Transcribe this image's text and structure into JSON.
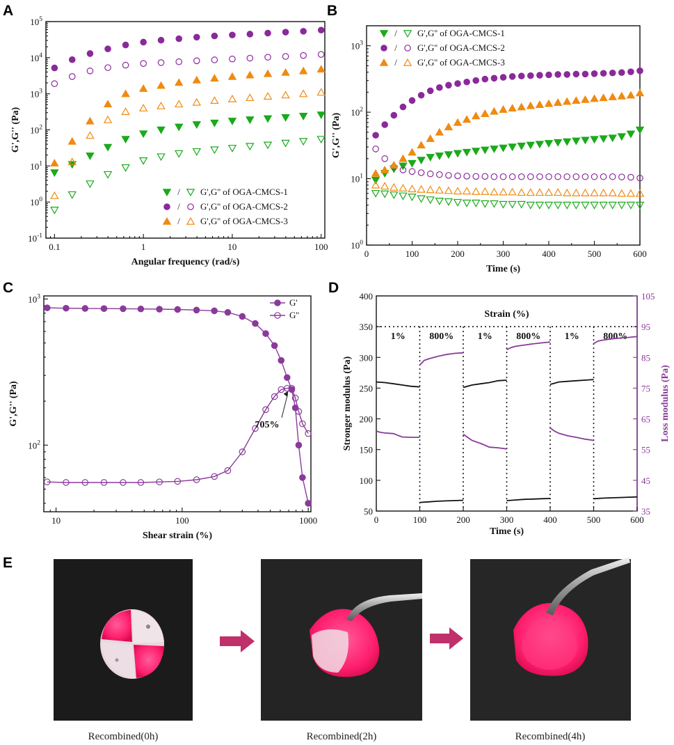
{
  "colors": {
    "green": "#1aaa1a",
    "purple": "#8a2a9a",
    "orange": "#f08a10",
    "curve_purple": "#8a3a9a",
    "arrow_pink": "#c0306a"
  },
  "panels": {
    "A": "A",
    "B": "B",
    "C": "C",
    "D": "D",
    "E": "E"
  },
  "chart_data": [
    {
      "id": "A",
      "type": "scatter",
      "xlabel": "Angular frequency  (rad/s)",
      "ylabel": "G',G'' (Pa)",
      "xscale": "log",
      "yscale": "log",
      "xlim": [
        0.08,
        110
      ],
      "ylim": [
        0.1,
        100000
      ],
      "xticks": [
        {
          "v": 0.1,
          "t": "0.1"
        },
        {
          "v": 1,
          "t": "1"
        },
        {
          "v": 10,
          "t": "10"
        },
        {
          "v": 100,
          "t": "100"
        }
      ],
      "yticks": [
        {
          "v": 0.1,
          "b": "10",
          "e": "-1"
        },
        {
          "v": 1,
          "b": "10",
          "e": "0"
        },
        {
          "v": 10,
          "b": "10",
          "e": "1"
        },
        {
          "v": 100,
          "b": "10",
          "e": "2"
        },
        {
          "v": 1000,
          "b": "10",
          "e": "3"
        },
        {
          "v": 10000,
          "b": "10",
          "e": "4"
        },
        {
          "v": 100000,
          "b": "10",
          "e": "5"
        }
      ],
      "legend_position": "bottom-right",
      "legend": [
        "G',G'' of OGA-CMCS-1",
        "G',G'' of OGA-CMCS-2",
        "G',G'' of OGA-CMCS-3"
      ],
      "x": [
        0.1,
        0.158,
        0.251,
        0.398,
        0.631,
        1.0,
        1.58,
        2.51,
        3.98,
        6.31,
        10,
        15.8,
        25.1,
        39.8,
        63.1,
        100
      ],
      "series": [
        {
          "name": "G' OGA-CMCS-1",
          "marker": "tri_down",
          "filled": true,
          "color": "green",
          "values": [
            6.5,
            11,
            19,
            33,
            55,
            78,
            100,
            120,
            140,
            155,
            175,
            190,
            205,
            220,
            240,
            260
          ]
        },
        {
          "name": "G'' OGA-CMCS-1",
          "marker": "tri_down",
          "filled": false,
          "color": "green",
          "values": [
            0.6,
            1.6,
            3.2,
            5.8,
            9,
            14,
            18,
            22,
            25,
            28,
            31,
            35,
            38,
            43,
            48,
            55
          ]
        },
        {
          "name": "G' OGA-CMCS-2",
          "marker": "circle",
          "filled": true,
          "color": "purple",
          "values": [
            5200,
            8800,
            13000,
            17500,
            22500,
            27000,
            30500,
            33500,
            37000,
            40000,
            42500,
            45000,
            48000,
            51000,
            54000,
            58000
          ]
        },
        {
          "name": "G'' OGA-CMCS-2",
          "marker": "circle",
          "filled": false,
          "color": "purple",
          "values": [
            1900,
            3000,
            4300,
            5300,
            6200,
            6900,
            7300,
            7700,
            8200,
            8700,
            9200,
            9700,
            10300,
            10800,
            11500,
            12300
          ]
        },
        {
          "name": "G' OGA-CMCS-3",
          "marker": "tri_up",
          "filled": true,
          "color": "orange",
          "values": [
            12,
            48,
            175,
            520,
            1000,
            1400,
            1700,
            2050,
            2400,
            2700,
            3000,
            3300,
            3600,
            3900,
            4300,
            4800
          ]
        },
        {
          "name": "G'' OGA-CMCS-3",
          "marker": "tri_up",
          "filled": false,
          "color": "orange",
          "values": [
            1.5,
            13,
            70,
            190,
            320,
            400,
            460,
            520,
            580,
            650,
            720,
            780,
            850,
            920,
            1000,
            1100
          ]
        }
      ]
    },
    {
      "id": "B",
      "type": "scatter",
      "xlabel": "Time (s)",
      "ylabel": "G',G'' (Pa)",
      "xscale": "linear",
      "yscale": "log",
      "xlim": [
        0,
        600
      ],
      "ylim": [
        1,
        2000
      ],
      "xticks": [
        {
          "v": 0,
          "t": "0"
        },
        {
          "v": 100,
          "t": "100"
        },
        {
          "v": 200,
          "t": "200"
        },
        {
          "v": 300,
          "t": "300"
        },
        {
          "v": 400,
          "t": "400"
        },
        {
          "v": 500,
          "t": "500"
        },
        {
          "v": 600,
          "t": "600"
        }
      ],
      "yticks": [
        {
          "v": 1,
          "b": "10",
          "e": "0"
        },
        {
          "v": 10,
          "b": "10",
          "e": "1"
        },
        {
          "v": 100,
          "b": "10",
          "e": "2"
        },
        {
          "v": 1000,
          "b": "10",
          "e": "3"
        }
      ],
      "legend_position": "top-left",
      "legend": [
        "G',G'' of OGA-CMCS-1",
        "G',G'' of OGA-CMCS-2",
        "G',G'' of OGA-CMCS-3"
      ],
      "x": [
        20,
        40,
        60,
        80,
        100,
        120,
        140,
        160,
        180,
        200,
        220,
        240,
        260,
        280,
        300,
        320,
        340,
        360,
        380,
        400,
        420,
        440,
        460,
        480,
        500,
        520,
        540,
        560,
        580,
        600
      ],
      "series": [
        {
          "name": "G' OGA-CMCS-1",
          "marker": "tri_down",
          "filled": true,
          "color": "green",
          "values": [
            9.5,
            12,
            14,
            15.5,
            17,
            19,
            21,
            22,
            23,
            24,
            25,
            26,
            27,
            28,
            29,
            30,
            31,
            32,
            33,
            34,
            35,
            36,
            37,
            38,
            39,
            40,
            41,
            43,
            47,
            54
          ]
        },
        {
          "name": "G'' OGA-CMCS-1",
          "marker": "tri_down",
          "filled": false,
          "color": "green",
          "values": [
            6,
            5.9,
            5.7,
            5.5,
            5.3,
            5.0,
            4.8,
            4.6,
            4.5,
            4.4,
            4.3,
            4.3,
            4.2,
            4.2,
            4.1,
            4.1,
            4.1,
            4.0,
            4.0,
            4.0,
            4.0,
            4.0,
            4.0,
            4.0,
            4.0,
            4.0,
            4.0,
            4.0,
            4.0,
            4.0
          ]
        },
        {
          "name": "G' OGA-CMCS-2",
          "marker": "circle",
          "filled": true,
          "color": "purple",
          "values": [
            45,
            65,
            90,
            120,
            150,
            180,
            210,
            235,
            255,
            270,
            285,
            300,
            315,
            325,
            335,
            345,
            350,
            355,
            360,
            365,
            370,
            370,
            375,
            375,
            380,
            385,
            390,
            395,
            405,
            420
          ]
        },
        {
          "name": "G'' OGA-CMCS-2",
          "marker": "circle",
          "filled": false,
          "color": "purple",
          "values": [
            28,
            20,
            15,
            13.5,
            12.8,
            12.3,
            11.8,
            11.5,
            11.2,
            11.0,
            10.9,
            10.8,
            10.8,
            10.7,
            10.7,
            10.7,
            10.7,
            10.7,
            10.7,
            10.7,
            10.7,
            10.7,
            10.7,
            10.7,
            10.7,
            10.7,
            10.7,
            10.6,
            10.5,
            10.2
          ]
        },
        {
          "name": "G' OGA-CMCS-3",
          "marker": "tri_up",
          "filled": true,
          "color": "orange",
          "values": [
            12,
            13.5,
            16,
            20,
            25,
            32,
            40,
            50,
            60,
            70,
            78,
            88,
            95,
            103,
            110,
            115,
            120,
            125,
            130,
            135,
            140,
            145,
            150,
            155,
            160,
            165,
            170,
            175,
            180,
            195
          ]
        },
        {
          "name": "G'' OGA-CMCS-3",
          "marker": "tri_up",
          "filled": false,
          "color": "orange",
          "values": [
            8,
            7.7,
            7.4,
            7.2,
            7.0,
            6.9,
            6.8,
            6.7,
            6.6,
            6.5,
            6.5,
            6.4,
            6.4,
            6.3,
            6.3,
            6.3,
            6.2,
            6.2,
            6.2,
            6.2,
            6.2,
            6.1,
            6.1,
            6.1,
            6.1,
            6.1,
            6.1,
            6.0,
            6.0,
            6.0
          ]
        }
      ]
    },
    {
      "id": "C",
      "type": "line",
      "xlabel": "Shear strain  (%)",
      "ylabel": "G',G'' (Pa)",
      "xscale": "log",
      "yscale": "log",
      "xlim": [
        8,
        1050
      ],
      "ylim": [
        35,
        1050
      ],
      "xticks": [
        {
          "v": 10,
          "t": "10"
        },
        {
          "v": 100,
          "t": "100"
        },
        {
          "v": 1000,
          "t": "1000"
        }
      ],
      "yticks": [
        {
          "v": 100,
          "b": "10",
          "e": "2"
        },
        {
          "v": 1000,
          "b": "10",
          "e": "3"
        }
      ],
      "legend_position": "top-right",
      "legend": [
        "G'",
        "G''"
      ],
      "annotation": "705%",
      "annotation_x": 705,
      "series": [
        {
          "name": "G'",
          "marker": "circle",
          "filled": true,
          "color": "curve_purple",
          "x": [
            8.5,
            12,
            17,
            24,
            34,
            47,
            66,
            92,
            130,
            180,
            230,
            300,
            380,
            460,
            540,
            610,
            680,
            740,
            790,
            840,
            900,
            1000
          ],
          "values": [
            870,
            865,
            862,
            860,
            858,
            855,
            852,
            848,
            840,
            830,
            810,
            760,
            680,
            580,
            480,
            380,
            290,
            240,
            180,
            100,
            60,
            40
          ]
        },
        {
          "name": "G''",
          "marker": "circle",
          "filled": false,
          "color": "curve_purple",
          "x": [
            8.5,
            12,
            17,
            24,
            34,
            47,
            66,
            92,
            130,
            180,
            230,
            300,
            380,
            460,
            540,
            610,
            680,
            740,
            790,
            840,
            900,
            1000
          ],
          "values": [
            56,
            55.5,
            55.5,
            55.5,
            55.5,
            55.5,
            56,
            56.5,
            58,
            61,
            67,
            90,
            130,
            175,
            215,
            240,
            245,
            245,
            210,
            170,
            140,
            120
          ]
        }
      ]
    },
    {
      "id": "D",
      "type": "line",
      "title": "Strain (%)",
      "xlabel": "Time (s)",
      "ylabel": "Stronger modulus (Pa)",
      "y2label": "Loss modulus (Pa)",
      "xlim": [
        0,
        600
      ],
      "ylim": [
        50,
        400
      ],
      "y2lim": [
        35,
        105
      ],
      "xticks": [
        0,
        100,
        200,
        300,
        400,
        500,
        600
      ],
      "yticks": [
        50,
        100,
        150,
        200,
        250,
        300,
        350,
        400
      ],
      "y2ticks": [
        35,
        45,
        55,
        65,
        75,
        85,
        95,
        105
      ],
      "dotted_y": 350,
      "intervals": [
        "1%",
        "800%",
        "1%",
        "800%",
        "1%",
        "800%"
      ],
      "storage": [
        {
          "x": [
            0,
            20,
            40,
            60,
            80,
            100
          ],
          "values": [
            260,
            259,
            257,
            255,
            253,
            252
          ]
        },
        {
          "x": [
            100,
            120,
            140,
            160,
            180,
            200
          ],
          "values": [
            64,
            65,
            66,
            66.5,
            67,
            67.5
          ]
        },
        {
          "x": [
            200,
            220,
            240,
            260,
            280,
            300
          ],
          "values": [
            251,
            255,
            257,
            259,
            262,
            263
          ]
        },
        {
          "x": [
            300,
            320,
            340,
            360,
            380,
            400
          ],
          "values": [
            67,
            68,
            69,
            69.5,
            70,
            70.5
          ]
        },
        {
          "x": [
            400,
            420,
            440,
            460,
            480,
            500
          ],
          "values": [
            256,
            260,
            261,
            262,
            263,
            264
          ]
        },
        {
          "x": [
            500,
            520,
            540,
            560,
            580,
            600
          ],
          "values": [
            70,
            71,
            71.5,
            72,
            72.5,
            73
          ]
        }
      ],
      "loss": [
        {
          "x": [
            0,
            10,
            20,
            30,
            40,
            50,
            60,
            80,
            100
          ],
          "values": [
            61,
            60.6,
            60.4,
            60.3,
            60.2,
            59.6,
            59.1,
            59,
            59
          ]
        },
        {
          "x": [
            100,
            110,
            120,
            140,
            160,
            180,
            200
          ],
          "values": [
            82.5,
            84,
            84.5,
            85.3,
            85.9,
            86.3,
            86.5
          ]
        },
        {
          "x": [
            200,
            210,
            220,
            240,
            260,
            280,
            300
          ],
          "values": [
            60,
            59,
            58,
            57,
            55.8,
            55.6,
            55.2
          ]
        },
        {
          "x": [
            300,
            310,
            320,
            340,
            360,
            380,
            400
          ],
          "values": [
            87.5,
            88.2,
            88.6,
            89,
            89.4,
            89.7,
            90
          ]
        },
        {
          "x": [
            400,
            410,
            420,
            440,
            460,
            480,
            500
          ],
          "values": [
            62,
            61,
            60.3,
            59.5,
            59,
            58.4,
            58
          ]
        },
        {
          "x": [
            500,
            510,
            520,
            540,
            560,
            580,
            600
          ],
          "values": [
            89.5,
            90.3,
            90.6,
            91,
            91.3,
            91.5,
            91.8
          ]
        }
      ]
    }
  ],
  "photos": {
    "captions": [
      "Recombined(0h)",
      "Recombined(2h)",
      "Recombined(4h)"
    ]
  }
}
